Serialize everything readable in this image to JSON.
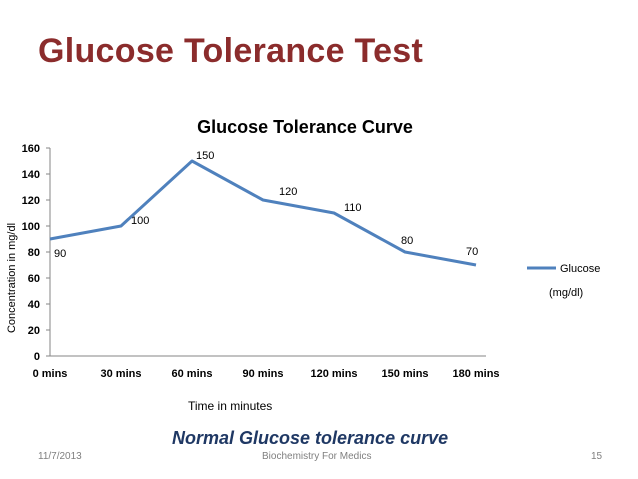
{
  "slide": {
    "title": "Glucose Tolerance Test",
    "caption": "Normal Glucose tolerance curve",
    "footer_date": "11/7/2013",
    "footer_center": "Biochemistry For Medics",
    "page_number": "15"
  },
  "chart_data": {
    "type": "line",
    "title": "Glucose Tolerance Curve",
    "xlabel": "Time in minutes",
    "ylabel": "Concentration in mg/dl",
    "categories": [
      "0 mins",
      "30 mins",
      "60 mins",
      "90 mins",
      "120 mins",
      "150 mins",
      "180 mins"
    ],
    "series": [
      {
        "name": "Glucose",
        "values": [
          90,
          100,
          150,
          120,
          110,
          80,
          70
        ],
        "color": "#4f81bd"
      }
    ],
    "ylim": [
      0,
      160
    ],
    "yticks": [
      0,
      20,
      40,
      60,
      80,
      100,
      120,
      140,
      160
    ],
    "legend_position": "right",
    "legend_note": "(mg/dl)",
    "data_labels": true
  }
}
